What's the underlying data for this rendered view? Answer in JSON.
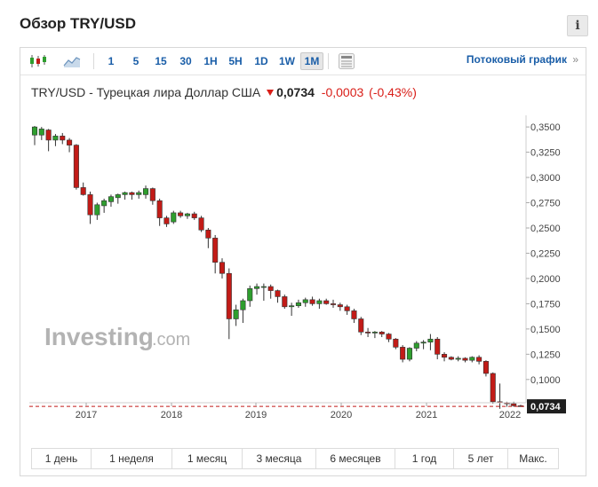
{
  "title": "Обзор TRY/USD",
  "info_label": "i",
  "toolbar": {
    "intervals": [
      "1",
      "5",
      "15",
      "30",
      "1H",
      "5H",
      "1D",
      "1W",
      "1M"
    ],
    "active_interval": "1M",
    "stream_label": "Потоковый график",
    "stream_arrow": "»",
    "icons": [
      "candlestick-chart-icon",
      "area-chart-icon",
      "table-view-icon"
    ]
  },
  "quote": {
    "name": "TRY/USD - Турецкая лира Доллар США",
    "price": "0,0734",
    "change": "-0,0003",
    "change_pct": "(-0,43%)"
  },
  "watermark": {
    "brand": "Investing",
    "suffix": ".com"
  },
  "periods": [
    "1 день",
    "1 неделя",
    "1 месяц",
    "3 месяца",
    "6 месяцев",
    "1 год",
    "5 лет",
    "Макс."
  ],
  "colors": {
    "up": "#2e9e2e",
    "down": "#c21b17",
    "link": "#1a5ea8",
    "price_label_bg": "#1f1f1f"
  },
  "chart_data": {
    "type": "candlestick",
    "title": "",
    "xlabel": "",
    "ylabel": "",
    "x_ticks": [
      "2017",
      "2018",
      "2019",
      "2020",
      "2021",
      "2022"
    ],
    "y_ticks": [
      "0,3500",
      "0,3250",
      "0,3000",
      "0,2750",
      "0,2500",
      "0,2250",
      "0,2000",
      "0,1750",
      "0,1500",
      "0,1250",
      "0,1000"
    ],
    "ylim": [
      0.077,
      0.358
    ],
    "last_price": 0.0734,
    "last_price_label": "0,0734",
    "candles": [
      {
        "o": 0.342,
        "h": 0.351,
        "l": 0.332,
        "c": 0.35
      },
      {
        "o": 0.342,
        "h": 0.35,
        "l": 0.337,
        "c": 0.348
      },
      {
        "o": 0.347,
        "h": 0.348,
        "l": 0.326,
        "c": 0.337
      },
      {
        "o": 0.337,
        "h": 0.343,
        "l": 0.331,
        "c": 0.341
      },
      {
        "o": 0.341,
        "h": 0.344,
        "l": 0.333,
        "c": 0.337
      },
      {
        "o": 0.337,
        "h": 0.339,
        "l": 0.325,
        "c": 0.332
      },
      {
        "o": 0.332,
        "h": 0.333,
        "l": 0.288,
        "c": 0.29
      },
      {
        "o": 0.29,
        "h": 0.295,
        "l": 0.282,
        "c": 0.283
      },
      {
        "o": 0.283,
        "h": 0.286,
        "l": 0.254,
        "c": 0.263
      },
      {
        "o": 0.263,
        "h": 0.275,
        "l": 0.258,
        "c": 0.273
      },
      {
        "o": 0.272,
        "h": 0.279,
        "l": 0.265,
        "c": 0.277
      },
      {
        "o": 0.276,
        "h": 0.283,
        "l": 0.271,
        "c": 0.281
      },
      {
        "o": 0.28,
        "h": 0.284,
        "l": 0.274,
        "c": 0.283
      },
      {
        "o": 0.283,
        "h": 0.286,
        "l": 0.278,
        "c": 0.285
      },
      {
        "o": 0.285,
        "h": 0.286,
        "l": 0.278,
        "c": 0.283
      },
      {
        "o": 0.283,
        "h": 0.287,
        "l": 0.279,
        "c": 0.285
      },
      {
        "o": 0.283,
        "h": 0.292,
        "l": 0.279,
        "c": 0.289
      },
      {
        "o": 0.289,
        "h": 0.29,
        "l": 0.273,
        "c": 0.277
      },
      {
        "o": 0.277,
        "h": 0.279,
        "l": 0.252,
        "c": 0.26
      },
      {
        "o": 0.26,
        "h": 0.262,
        "l": 0.251,
        "c": 0.254
      },
      {
        "o": 0.256,
        "h": 0.267,
        "l": 0.254,
        "c": 0.265
      },
      {
        "o": 0.265,
        "h": 0.267,
        "l": 0.26,
        "c": 0.262
      },
      {
        "o": 0.262,
        "h": 0.265,
        "l": 0.259,
        "c": 0.264
      },
      {
        "o": 0.264,
        "h": 0.266,
        "l": 0.258,
        "c": 0.26
      },
      {
        "o": 0.26,
        "h": 0.262,
        "l": 0.246,
        "c": 0.248
      },
      {
        "o": 0.248,
        "h": 0.25,
        "l": 0.23,
        "c": 0.24
      },
      {
        "o": 0.24,
        "h": 0.243,
        "l": 0.205,
        "c": 0.216
      },
      {
        "o": 0.216,
        "h": 0.22,
        "l": 0.2,
        "c": 0.205
      },
      {
        "o": 0.205,
        "h": 0.21,
        "l": 0.14,
        "c": 0.16
      },
      {
        "o": 0.16,
        "h": 0.174,
        "l": 0.153,
        "c": 0.169
      },
      {
        "o": 0.169,
        "h": 0.18,
        "l": 0.156,
        "c": 0.178
      },
      {
        "o": 0.178,
        "h": 0.193,
        "l": 0.172,
        "c": 0.19
      },
      {
        "o": 0.19,
        "h": 0.195,
        "l": 0.184,
        "c": 0.192
      },
      {
        "o": 0.192,
        "h": 0.195,
        "l": 0.178,
        "c": 0.192
      },
      {
        "o": 0.192,
        "h": 0.194,
        "l": 0.18,
        "c": 0.188
      },
      {
        "o": 0.188,
        "h": 0.189,
        "l": 0.176,
        "c": 0.182
      },
      {
        "o": 0.182,
        "h": 0.184,
        "l": 0.17,
        "c": 0.172
      },
      {
        "o": 0.172,
        "h": 0.176,
        "l": 0.163,
        "c": 0.173
      },
      {
        "o": 0.173,
        "h": 0.179,
        "l": 0.171,
        "c": 0.176
      },
      {
        "o": 0.176,
        "h": 0.181,
        "l": 0.172,
        "c": 0.179
      },
      {
        "o": 0.179,
        "h": 0.182,
        "l": 0.173,
        "c": 0.175
      },
      {
        "o": 0.175,
        "h": 0.18,
        "l": 0.17,
        "c": 0.178
      },
      {
        "o": 0.178,
        "h": 0.18,
        "l": 0.174,
        "c": 0.175
      },
      {
        "o": 0.175,
        "h": 0.179,
        "l": 0.171,
        "c": 0.174
      },
      {
        "o": 0.174,
        "h": 0.176,
        "l": 0.168,
        "c": 0.172
      },
      {
        "o": 0.172,
        "h": 0.174,
        "l": 0.164,
        "c": 0.168
      },
      {
        "o": 0.168,
        "h": 0.17,
        "l": 0.156,
        "c": 0.16
      },
      {
        "o": 0.16,
        "h": 0.162,
        "l": 0.144,
        "c": 0.147
      },
      {
        "o": 0.147,
        "h": 0.151,
        "l": 0.142,
        "c": 0.146
      },
      {
        "o": 0.146,
        "h": 0.148,
        "l": 0.141,
        "c": 0.147
      },
      {
        "o": 0.147,
        "h": 0.148,
        "l": 0.142,
        "c": 0.145
      },
      {
        "o": 0.145,
        "h": 0.146,
        "l": 0.137,
        "c": 0.14
      },
      {
        "o": 0.14,
        "h": 0.141,
        "l": 0.13,
        "c": 0.132
      },
      {
        "o": 0.132,
        "h": 0.134,
        "l": 0.117,
        "c": 0.12
      },
      {
        "o": 0.12,
        "h": 0.132,
        "l": 0.118,
        "c": 0.131
      },
      {
        "o": 0.131,
        "h": 0.138,
        "l": 0.128,
        "c": 0.136
      },
      {
        "o": 0.136,
        "h": 0.139,
        "l": 0.13,
        "c": 0.137
      },
      {
        "o": 0.137,
        "h": 0.145,
        "l": 0.129,
        "c": 0.14
      },
      {
        "o": 0.14,
        "h": 0.142,
        "l": 0.12,
        "c": 0.125
      },
      {
        "o": 0.125,
        "h": 0.127,
        "l": 0.118,
        "c": 0.122
      },
      {
        "o": 0.122,
        "h": 0.123,
        "l": 0.119,
        "c": 0.12
      },
      {
        "o": 0.12,
        "h": 0.123,
        "l": 0.118,
        "c": 0.121
      },
      {
        "o": 0.121,
        "h": 0.122,
        "l": 0.117,
        "c": 0.119
      },
      {
        "o": 0.119,
        "h": 0.123,
        "l": 0.117,
        "c": 0.122
      },
      {
        "o": 0.122,
        "h": 0.124,
        "l": 0.115,
        "c": 0.118
      },
      {
        "o": 0.118,
        "h": 0.119,
        "l": 0.103,
        "c": 0.106
      },
      {
        "o": 0.106,
        "h": 0.107,
        "l": 0.076,
        "c": 0.078
      },
      {
        "o": 0.078,
        "h": 0.096,
        "l": 0.071,
        "c": 0.077
      },
      {
        "o": 0.077,
        "h": 0.078,
        "l": 0.073,
        "c": 0.076
      },
      {
        "o": 0.076,
        "h": 0.078,
        "l": 0.073,
        "c": 0.074
      },
      {
        "o": 0.074,
        "h": 0.075,
        "l": 0.073,
        "c": 0.0734
      }
    ]
  }
}
